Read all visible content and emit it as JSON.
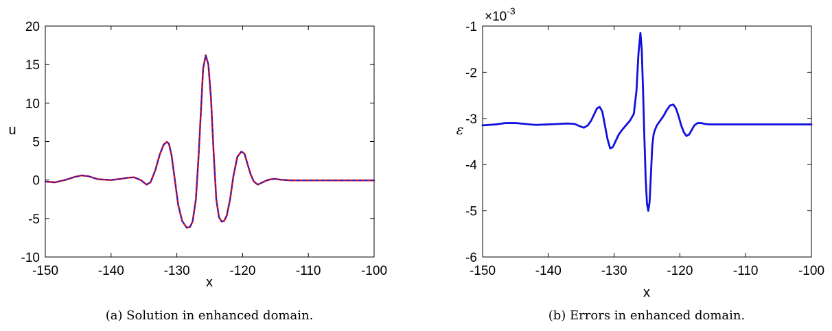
{
  "figure": {
    "panels": [
      {
        "caption": "(a) Solution in enhanced domain.",
        "xlabel": "x",
        "ylabel": "u",
        "xlim": [
          -150,
          -100
        ],
        "ylim": [
          -10,
          20
        ],
        "xticks": [
          "-150",
          "-140",
          "-130",
          "-120",
          "-110",
          "-100"
        ],
        "yticks": [
          "-10",
          "-5",
          "0",
          "5",
          "10",
          "15",
          "20"
        ]
      },
      {
        "caption": "(b) Errors in enhanced domain.",
        "xlabel": "x",
        "ylabel": "ε",
        "multiplier": "×10",
        "multiplier_exp": "-3",
        "xlim": [
          -150,
          -100
        ],
        "ylim": [
          -6,
          -1
        ],
        "xticks": [
          "-150",
          "-140",
          "-130",
          "-120",
          "-110",
          "-100"
        ],
        "yticks": [
          "-6",
          "-5",
          "-4",
          "-3",
          "-2",
          "-1"
        ]
      }
    ]
  },
  "chart_data": [
    {
      "type": "line",
      "title": "",
      "xlabel": "x",
      "ylabel": "u",
      "xlim": [
        -150,
        -100
      ],
      "ylim": [
        -10,
        20
      ],
      "grid": false,
      "series": [
        {
          "color": "#ee1111",
          "style": "solid",
          "x": [
            -150,
            -148.5,
            -147,
            -145.5,
            -144.5,
            -143.5,
            -142,
            -140,
            -138.5,
            -137.5,
            -136.5,
            -135.5,
            -134.6,
            -134,
            -133.3,
            -132.6,
            -132,
            -131.5,
            -131.2,
            -130.8,
            -130.3,
            -129.8,
            -129.2,
            -128.5,
            -128,
            -127.6,
            -127.1,
            -126.7,
            -126.3,
            -126,
            -125.6,
            -125.2,
            -124.8,
            -124.4,
            -124,
            -123.6,
            -123.2,
            -122.8,
            -122.4,
            -121.9,
            -121.4,
            -120.8,
            -120.2,
            -119.7,
            -119.3,
            -118.8,
            -118.3,
            -117.7,
            -117.2,
            -116.7,
            -116.2,
            -115.6,
            -115,
            -114.3,
            -113.5,
            -112.5,
            -111,
            -109,
            -106,
            -103,
            -100
          ],
          "y": [
            -0.2,
            -0.3,
            0,
            0.4,
            0.6,
            0.5,
            0.1,
            0,
            0.15,
            0.3,
            0.35,
            0,
            -0.6,
            -0.3,
            1.2,
            3.3,
            4.6,
            4.95,
            4.7,
            3.2,
            0,
            -3.2,
            -5.3,
            -6.2,
            -6.1,
            -5.4,
            -2.5,
            3,
            9.5,
            14.5,
            16.2,
            15,
            10.5,
            3.5,
            -2.5,
            -4.8,
            -5.4,
            -5.3,
            -4.6,
            -2.5,
            0.5,
            3,
            3.7,
            3.4,
            2.2,
            0.8,
            -0.2,
            -0.6,
            -0.4,
            -0.2,
            0,
            0.1,
            0.15,
            0.05,
            0,
            -0.05,
            -0.05,
            -0.05,
            -0.05,
            -0.05,
            -0.05
          ]
        },
        {
          "color": "#2222cc",
          "style": "dashed",
          "x": [
            -150,
            -148.5,
            -147,
            -145.5,
            -144.5,
            -143.5,
            -142,
            -140,
            -138.5,
            -137.5,
            -136.5,
            -135.5,
            -134.6,
            -134,
            -133.3,
            -132.6,
            -132,
            -131.5,
            -131.2,
            -130.8,
            -130.3,
            -129.8,
            -129.2,
            -128.5,
            -128,
            -127.6,
            -127.1,
            -126.7,
            -126.3,
            -126,
            -125.6,
            -125.2,
            -124.8,
            -124.4,
            -124,
            -123.6,
            -123.2,
            -122.8,
            -122.4,
            -121.9,
            -121.4,
            -120.8,
            -120.2,
            -119.7,
            -119.3,
            -118.8,
            -118.3,
            -117.7,
            -117.2,
            -116.7,
            -116.2,
            -115.6,
            -115,
            -114.3,
            -113.5,
            -112.5,
            -111,
            -109,
            -106,
            -103,
            -100
          ],
          "y": [
            -0.2,
            -0.3,
            0,
            0.4,
            0.6,
            0.5,
            0.1,
            0,
            0.15,
            0.3,
            0.35,
            0,
            -0.6,
            -0.3,
            1.2,
            3.3,
            4.6,
            4.95,
            4.7,
            3.2,
            0,
            -3.2,
            -5.3,
            -6.2,
            -6.1,
            -5.4,
            -2.5,
            3,
            9.5,
            14.5,
            16.2,
            15,
            10.5,
            3.5,
            -2.5,
            -4.8,
            -5.4,
            -5.3,
            -4.6,
            -2.5,
            0.5,
            3,
            3.7,
            3.4,
            2.2,
            0.8,
            -0.2,
            -0.6,
            -0.4,
            -0.2,
            0,
            0.1,
            0.15,
            0.05,
            0,
            -0.05,
            -0.05,
            -0.05,
            -0.05,
            -0.05,
            -0.05
          ]
        }
      ]
    },
    {
      "type": "line",
      "title": "",
      "xlabel": "x",
      "ylabel": "ε",
      "xlim": [
        -150,
        -100
      ],
      "ylim": [
        -0.006,
        -0.001
      ],
      "scale_multiplier": 0.001,
      "grid": false,
      "series": [
        {
          "color": "#1111dd",
          "style": "solid",
          "x": [
            -150,
            -148,
            -146.5,
            -145,
            -143.5,
            -142,
            -140,
            -138.5,
            -137,
            -136,
            -135.2,
            -134.6,
            -134,
            -133.5,
            -133,
            -132.6,
            -132.2,
            -131.8,
            -131.4,
            -131,
            -130.6,
            -130.2,
            -129.8,
            -129.3,
            -128.8,
            -128.2,
            -127.6,
            -127,
            -126.6,
            -126.3,
            -126,
            -125.8,
            -125.6,
            -125.4,
            -125.2,
            -125,
            -124.8,
            -124.6,
            -124.4,
            -124.2,
            -124,
            -123.8,
            -123.5,
            -123,
            -122.5,
            -122,
            -121.5,
            -121,
            -120.6,
            -120.2,
            -119.8,
            -119.4,
            -119,
            -118.6,
            -118.2,
            -117.8,
            -117.3,
            -116.8,
            -116.2,
            -115.5,
            -114.5,
            -113,
            -111,
            -108,
            -104,
            -100
          ],
          "y": [
            -3.15,
            -3.13,
            -3.1,
            -3.1,
            -3.12,
            -3.14,
            -3.13,
            -3.12,
            -3.11,
            -3.12,
            -3.17,
            -3.2,
            -3.15,
            -3.05,
            -2.9,
            -2.78,
            -2.75,
            -2.85,
            -3.15,
            -3.45,
            -3.65,
            -3.62,
            -3.5,
            -3.35,
            -3.25,
            -3.15,
            -3.05,
            -2.9,
            -2.4,
            -1.6,
            -1.15,
            -1.5,
            -2.4,
            -3.4,
            -4.3,
            -4.85,
            -5.0,
            -4.8,
            -4.2,
            -3.6,
            -3.35,
            -3.25,
            -3.15,
            -3.05,
            -2.95,
            -2.82,
            -2.72,
            -2.7,
            -2.78,
            -2.95,
            -3.15,
            -3.3,
            -3.38,
            -3.35,
            -3.25,
            -3.15,
            -3.1,
            -3.1,
            -3.12,
            -3.13,
            -3.13,
            -3.13,
            -3.13,
            -3.13,
            -3.13,
            -3.13
          ]
        }
      ]
    }
  ]
}
